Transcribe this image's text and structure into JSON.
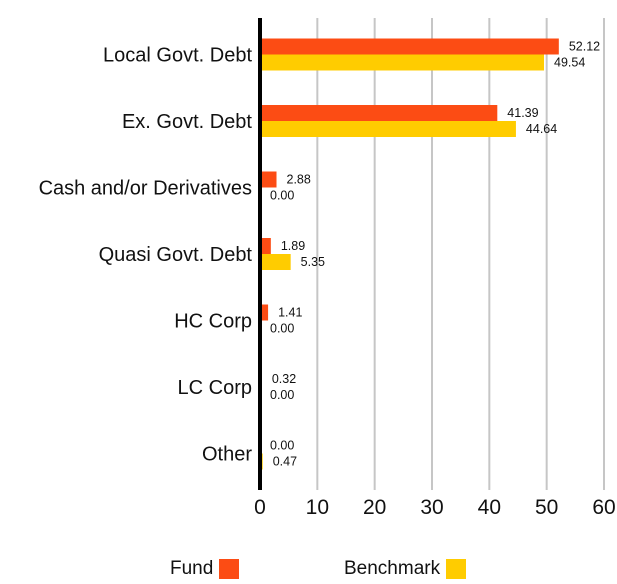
{
  "chart_data": {
    "type": "bar",
    "orientation": "horizontal",
    "categories": [
      "Local Govt. Debt",
      "Ex. Govt. Debt",
      "Cash and/or Derivatives",
      "Quasi Govt. Debt",
      "HC Corp",
      "LC Corp",
      "Other"
    ],
    "series": [
      {
        "name": "Fund",
        "color": "#fc4c14",
        "values": [
          52.12,
          41.39,
          2.88,
          1.89,
          1.41,
          0.32,
          0.0
        ]
      },
      {
        "name": "Benchmark",
        "color": "#ffcc00",
        "values": [
          49.54,
          44.64,
          0.0,
          5.35,
          0.0,
          0.0,
          0.47
        ]
      }
    ],
    "value_labels": [
      [
        "52.12",
        "41.39",
        "2.88",
        "1.89",
        "1.41",
        "0.32",
        "0.00"
      ],
      [
        "49.54",
        "44.64",
        "0.00",
        "5.35",
        "0.00",
        "0.00",
        "0.47"
      ]
    ],
    "xlim": [
      0,
      60
    ],
    "xticks": [
      "0",
      "10",
      "20",
      "30",
      "40",
      "50",
      "60"
    ],
    "grid": true,
    "legend_position": "bottom"
  }
}
